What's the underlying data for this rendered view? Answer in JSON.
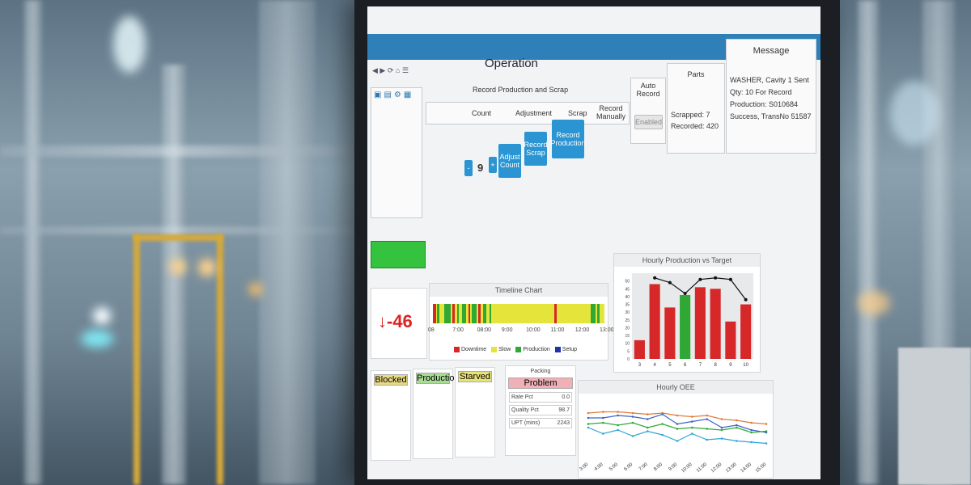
{
  "operation": {
    "title": "Operation",
    "subtitle": "Record Production and Scrap",
    "count_label": "Count",
    "adjustment_label": "Adjustment",
    "scrap_label": "Scrap",
    "record_manually": "Record Manually",
    "auto_record": "Auto Record",
    "parts_label": "Parts",
    "message_label": "Message",
    "count_value": "9",
    "minus": "-",
    "plus": "+",
    "adjust_count": "Adjust Count",
    "record_scrap": "Record Scrap",
    "record_production": "Record Production",
    "enabled": "Enabled",
    "scrapped": "Scrapped: 7",
    "recorded": "Recorded: 420",
    "message_line1": "WASHER, Cavity 1 Sent",
    "message_line2": "Qty: 10 For Record",
    "message_line3": "Production: S010684",
    "message_line4": "Success, TransNo 51587"
  },
  "timeline": {
    "title": "Timeline Chart",
    "ticks": [
      "08",
      "7:00",
      "08:00",
      "9:00",
      "10:00",
      "11:00",
      "12:00",
      "13:00"
    ],
    "legend": [
      {
        "name": "Downtime",
        "color": "#d62828"
      },
      {
        "name": "Slow",
        "color": "#e4e43a"
      },
      {
        "name": "Production",
        "color": "#2fa836"
      },
      {
        "name": "Setup",
        "color": "#2233aa"
      }
    ]
  },
  "downtime": {
    "value": "↓-46"
  },
  "hourly_production": {
    "title": "Hourly Production vs Target"
  },
  "stations": [
    {
      "status": "Blocked",
      "color": "#e8d984"
    },
    {
      "status": "Production",
      "color": "#a8dc95"
    },
    {
      "status": "Starved",
      "color": "#e8e27a"
    },
    {
      "name": "Packing",
      "status": "Problem",
      "color": "#f0b0b6",
      "rows": [
        {
          "label": "Rate Pct",
          "value": "0.0"
        },
        {
          "label": "Quality Pct",
          "value": "98.7"
        },
        {
          "label": "UPT (mins)",
          "value": "2243"
        }
      ]
    }
  ],
  "oee": {
    "title": "Hourly OEE"
  },
  "chart_data": [
    {
      "type": "bar",
      "title": "Hourly Production vs Target",
      "categories": [
        "3",
        "4",
        "5",
        "6",
        "7",
        "8",
        "9",
        "10"
      ],
      "values": [
        12,
        48,
        33,
        41,
        46,
        45,
        24,
        35
      ],
      "bar_colors": [
        "#d62828",
        "#d62828",
        "#d62828",
        "#2fa836",
        "#d62828",
        "#d62828",
        "#d62828",
        "#d62828"
      ],
      "target": [
        null,
        52,
        49,
        42,
        51,
        52,
        51,
        38
      ],
      "ylim": [
        0,
        55
      ],
      "yticks": [
        0,
        5,
        10,
        15,
        20,
        25,
        30,
        35,
        40,
        45,
        50
      ]
    },
    {
      "type": "line",
      "title": "Hourly OEE",
      "x": [
        "3:00",
        "4:00",
        "5:00",
        "6:00",
        "7:00",
        "8:00",
        "9:00",
        "10:00",
        "11:00",
        "12:00",
        "13:00",
        "14:00",
        "15:00"
      ],
      "series": [
        {
          "color": "#e07a3a",
          "values": [
            72,
            73,
            73,
            72,
            71,
            72,
            70,
            69,
            70,
            67,
            66,
            64,
            63
          ]
        },
        {
          "color": "#3f63c7",
          "values": [
            68,
            68,
            70,
            69,
            67,
            71,
            63,
            65,
            67,
            60,
            62,
            58,
            56
          ]
        },
        {
          "color": "#2fa836",
          "values": [
            63,
            64,
            62,
            64,
            60,
            63,
            59,
            60,
            59,
            58,
            60,
            56,
            57
          ]
        },
        {
          "color": "#2ea5d6",
          "values": [
            60,
            55,
            58,
            53,
            57,
            54,
            49,
            55,
            50,
            51,
            49,
            48,
            47
          ]
        }
      ],
      "ylim": [
        40,
        80
      ]
    }
  ]
}
